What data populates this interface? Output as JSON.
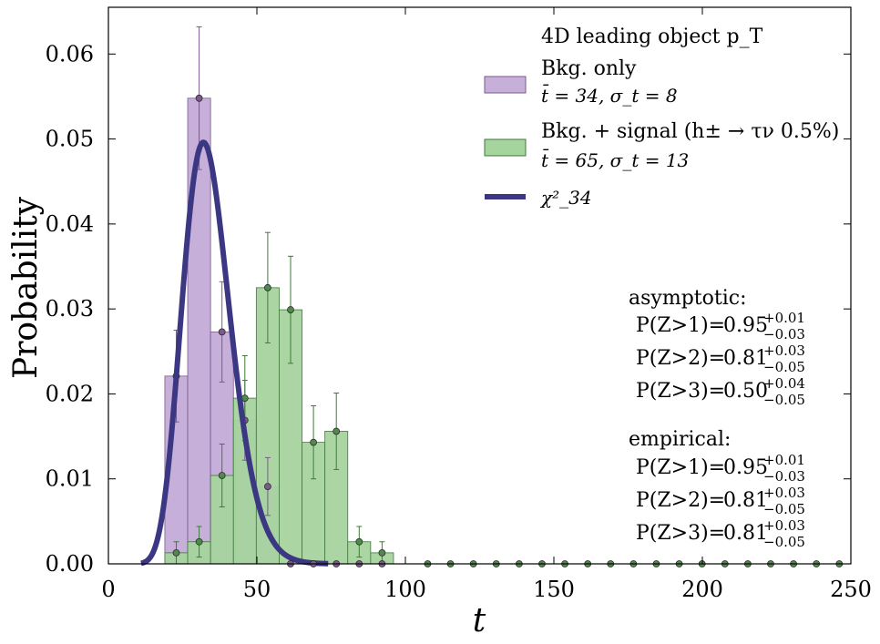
{
  "chart_data": {
    "type": "bar",
    "xlabel": "t",
    "ylabel": "Probability",
    "xlim": [
      0,
      250
    ],
    "ylim": [
      0,
      0.0655
    ],
    "xticks": [
      0,
      50,
      100,
      150,
      200,
      250
    ],
    "xtick_labels": [
      "0",
      "50",
      "100",
      "150",
      "200",
      "250"
    ],
    "yticks": [
      0.0,
      0.01,
      0.02,
      0.03,
      0.04,
      0.05,
      0.06
    ],
    "ytick_labels": [
      "0.00",
      "0.01",
      "0.02",
      "0.03",
      "0.04",
      "0.05",
      "0.06"
    ],
    "bin_edges": [
      19,
      26.7,
      34.4,
      42.1,
      49.8,
      57.5,
      65.2,
      72.9,
      80.6,
      88.3,
      96,
      103.7
    ],
    "legend_title": "4D leading object p_T",
    "series": [
      {
        "name": "Bkg. only",
        "stats_label": "t̄ = 34, σ_t = 8",
        "color": "#c6afd8",
        "edge_color": "#7a5a8c",
        "values": [
          0.0221,
          0.0548,
          0.0273,
          0.0169,
          0.0091,
          0,
          0,
          0,
          0,
          0,
          0
        ],
        "errors": [
          0.0054,
          0.0084,
          0.0059,
          0.0047,
          0.0034,
          0,
          0,
          0,
          0,
          0,
          0
        ]
      },
      {
        "name": "Bkg. + signal (h± → τν 0.5%)",
        "stats_label": "t̄ = 65, σ_t = 13",
        "color": "#a6d49f",
        "edge_color": "#3f7a3a",
        "values": [
          0.0013,
          0.0026,
          0.0104,
          0.0195,
          0.0325,
          0.0299,
          0.0143,
          0.0156,
          0.0026,
          0.0013,
          0
        ],
        "errors": [
          0.0013,
          0.0018,
          0.0037,
          0.005,
          0.0065,
          0.0063,
          0.0043,
          0.0045,
          0.0018,
          0.0013,
          0
        ]
      }
    ],
    "curve": {
      "name": "χ²_34",
      "dof": 34,
      "color": "#3b3782",
      "x_range": [
        11,
        74
      ]
    },
    "zero_markers_x_start": 107.5,
    "zero_markers_step": 7.7,
    "annotations": {
      "asymptotic": {
        "label": "asymptotic:",
        "rows": [
          {
            "text": "P(Z>1)=",
            "value": "0.95",
            "sup": "+0.01",
            "sub": "−0.03"
          },
          {
            "text": "P(Z>2)=",
            "value": "0.81",
            "sup": "+0.03",
            "sub": "−0.05"
          },
          {
            "text": "P(Z>3)=",
            "value": "0.50",
            "sup": "+0.04",
            "sub": "−0.05"
          }
        ]
      },
      "empirical": {
        "label": "empirical:",
        "rows": [
          {
            "text": "P(Z>1)=",
            "value": "0.95",
            "sup": "+0.01",
            "sub": "−0.03"
          },
          {
            "text": "P(Z>2)=",
            "value": "0.81",
            "sup": "+0.03",
            "sub": "−0.05"
          },
          {
            "text": "P(Z>3)=",
            "value": "0.81",
            "sup": "+0.03",
            "sub": "−0.05"
          }
        ]
      }
    },
    "legend_placement": "top-right",
    "grid": false
  }
}
